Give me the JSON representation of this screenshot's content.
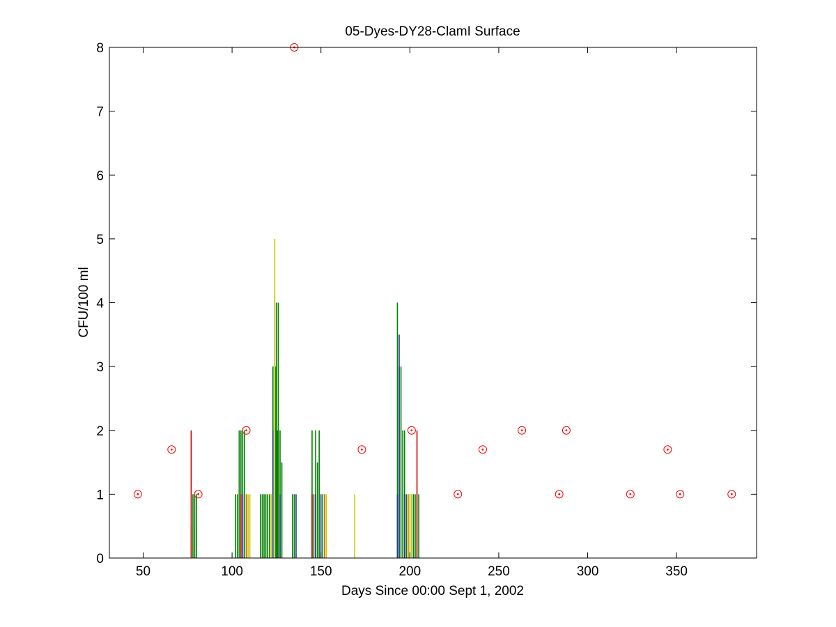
{
  "chart_data": {
    "type": "scatter",
    "title": "05-Dyes-DY28-ClamI Surface",
    "xlabel": "Days Since 00:00 Sept 1, 2002",
    "ylabel": "CFU/100 ml",
    "xlim": [
      31,
      395
    ],
    "ylim": [
      0,
      8
    ],
    "xticks": [
      50,
      100,
      150,
      200,
      250,
      300,
      350
    ],
    "yticks": [
      0,
      1,
      2,
      3,
      4,
      5,
      6,
      7,
      8
    ],
    "grid": false,
    "legend": "none",
    "colors": {
      "marker": "#ff0000",
      "green": "#008000",
      "olive": "#c8c800",
      "blue": "#1f3a8f",
      "red": "#cc0000",
      "orange": "#d26400"
    },
    "series": [
      {
        "marker": "circle-dot",
        "color": "#ff0000",
        "x": [
          47,
          66,
          81,
          108,
          135,
          173,
          201,
          227,
          241,
          263,
          284,
          288,
          324,
          345,
          352,
          381
        ],
        "y": [
          1,
          1.7,
          1,
          2,
          8,
          1.7,
          2,
          1,
          1.7,
          2,
          1,
          2,
          1,
          1.7,
          1,
          1
        ]
      },
      {
        "style": "stem",
        "color": "#008000",
        "x": [
          78,
          79,
          80,
          102,
          103,
          104,
          105,
          106,
          107,
          116,
          117,
          118,
          119,
          120,
          121,
          123,
          124,
          124.5,
          125,
          125.5,
          126,
          127,
          128,
          134,
          135,
          145,
          146,
          147,
          148,
          149,
          151,
          193,
          194,
          195,
          196,
          197,
          198,
          199,
          200,
          202,
          203,
          204,
          205
        ],
        "y": [
          1,
          1,
          1,
          1,
          1,
          2,
          2,
          2,
          2,
          1,
          1,
          1,
          1,
          1,
          1,
          3,
          4,
          3,
          4,
          2,
          4,
          2,
          1.5,
          1,
          1,
          2,
          1,
          2,
          1.5,
          2,
          1,
          4,
          3,
          3,
          2,
          2,
          1,
          1,
          1,
          1,
          1,
          1,
          1
        ]
      },
      {
        "style": "stem",
        "color": "#c8c800",
        "x": [
          77,
          109,
          110,
          122,
          124,
          153,
          169,
          200,
          201
        ],
        "y": [
          0.5,
          1,
          1,
          1,
          5,
          1,
          1,
          1,
          1
        ]
      },
      {
        "style": "stem",
        "color": "#1f3a8f",
        "x": [
          106,
          123,
          127,
          136,
          147,
          150,
          193,
          194,
          197
        ],
        "y": [
          1,
          2,
          1,
          1,
          1,
          1,
          1,
          3.5,
          1
        ]
      },
      {
        "style": "stem",
        "color": "#cc0000",
        "x": [
          77,
          105,
          145,
          204
        ],
        "y": [
          2,
          1,
          1,
          2
        ]
      },
      {
        "style": "stem",
        "color": "#d26400",
        "x": [
          108,
          152,
          199
        ],
        "y": [
          1,
          1,
          1
        ]
      }
    ]
  }
}
